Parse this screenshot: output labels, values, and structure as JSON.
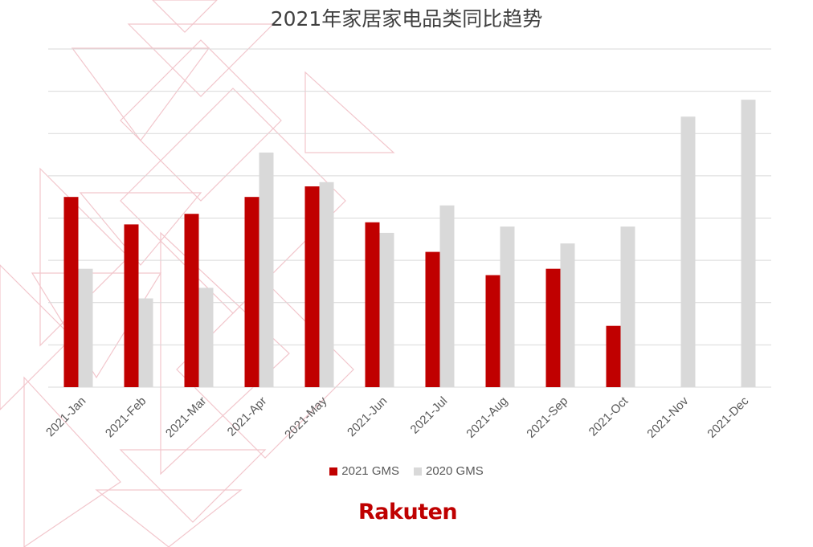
{
  "colors": {
    "series_2021": "#c00000",
    "series_2020": "#d9d9d9",
    "grid": "#d9d9d9",
    "text": "#595959",
    "brand": "#bf0000"
  },
  "logo": {
    "text": "Rakuten"
  },
  "chart_data": {
    "type": "bar",
    "title": "2021年家居家电品类同比趋势",
    "xlabel": "",
    "ylabel": "",
    "grid": true,
    "y_tick_labels_shown": false,
    "legend_position": "bottom",
    "ylim": [
      0,
      8
    ],
    "categories": [
      "2021-Jan",
      "2021-Feb",
      "2021-Mar",
      "2021-Apr",
      "2021-May",
      "2021-Jun",
      "2021-Jul",
      "2021-Aug",
      "2021-Sep",
      "2021-Oct",
      "2021-Nov",
      "2021-Dec"
    ],
    "series": [
      {
        "name": "2021 GMS",
        "values": [
          4.5,
          3.85,
          4.1,
          4.5,
          4.75,
          3.9,
          3.2,
          2.65,
          2.8,
          1.45,
          null,
          null
        ]
      },
      {
        "name": "2020 GMS",
        "values": [
          2.8,
          2.1,
          2.35,
          5.55,
          4.85,
          3.65,
          4.3,
          3.8,
          3.4,
          3.8,
          6.4,
          6.8
        ]
      }
    ]
  }
}
